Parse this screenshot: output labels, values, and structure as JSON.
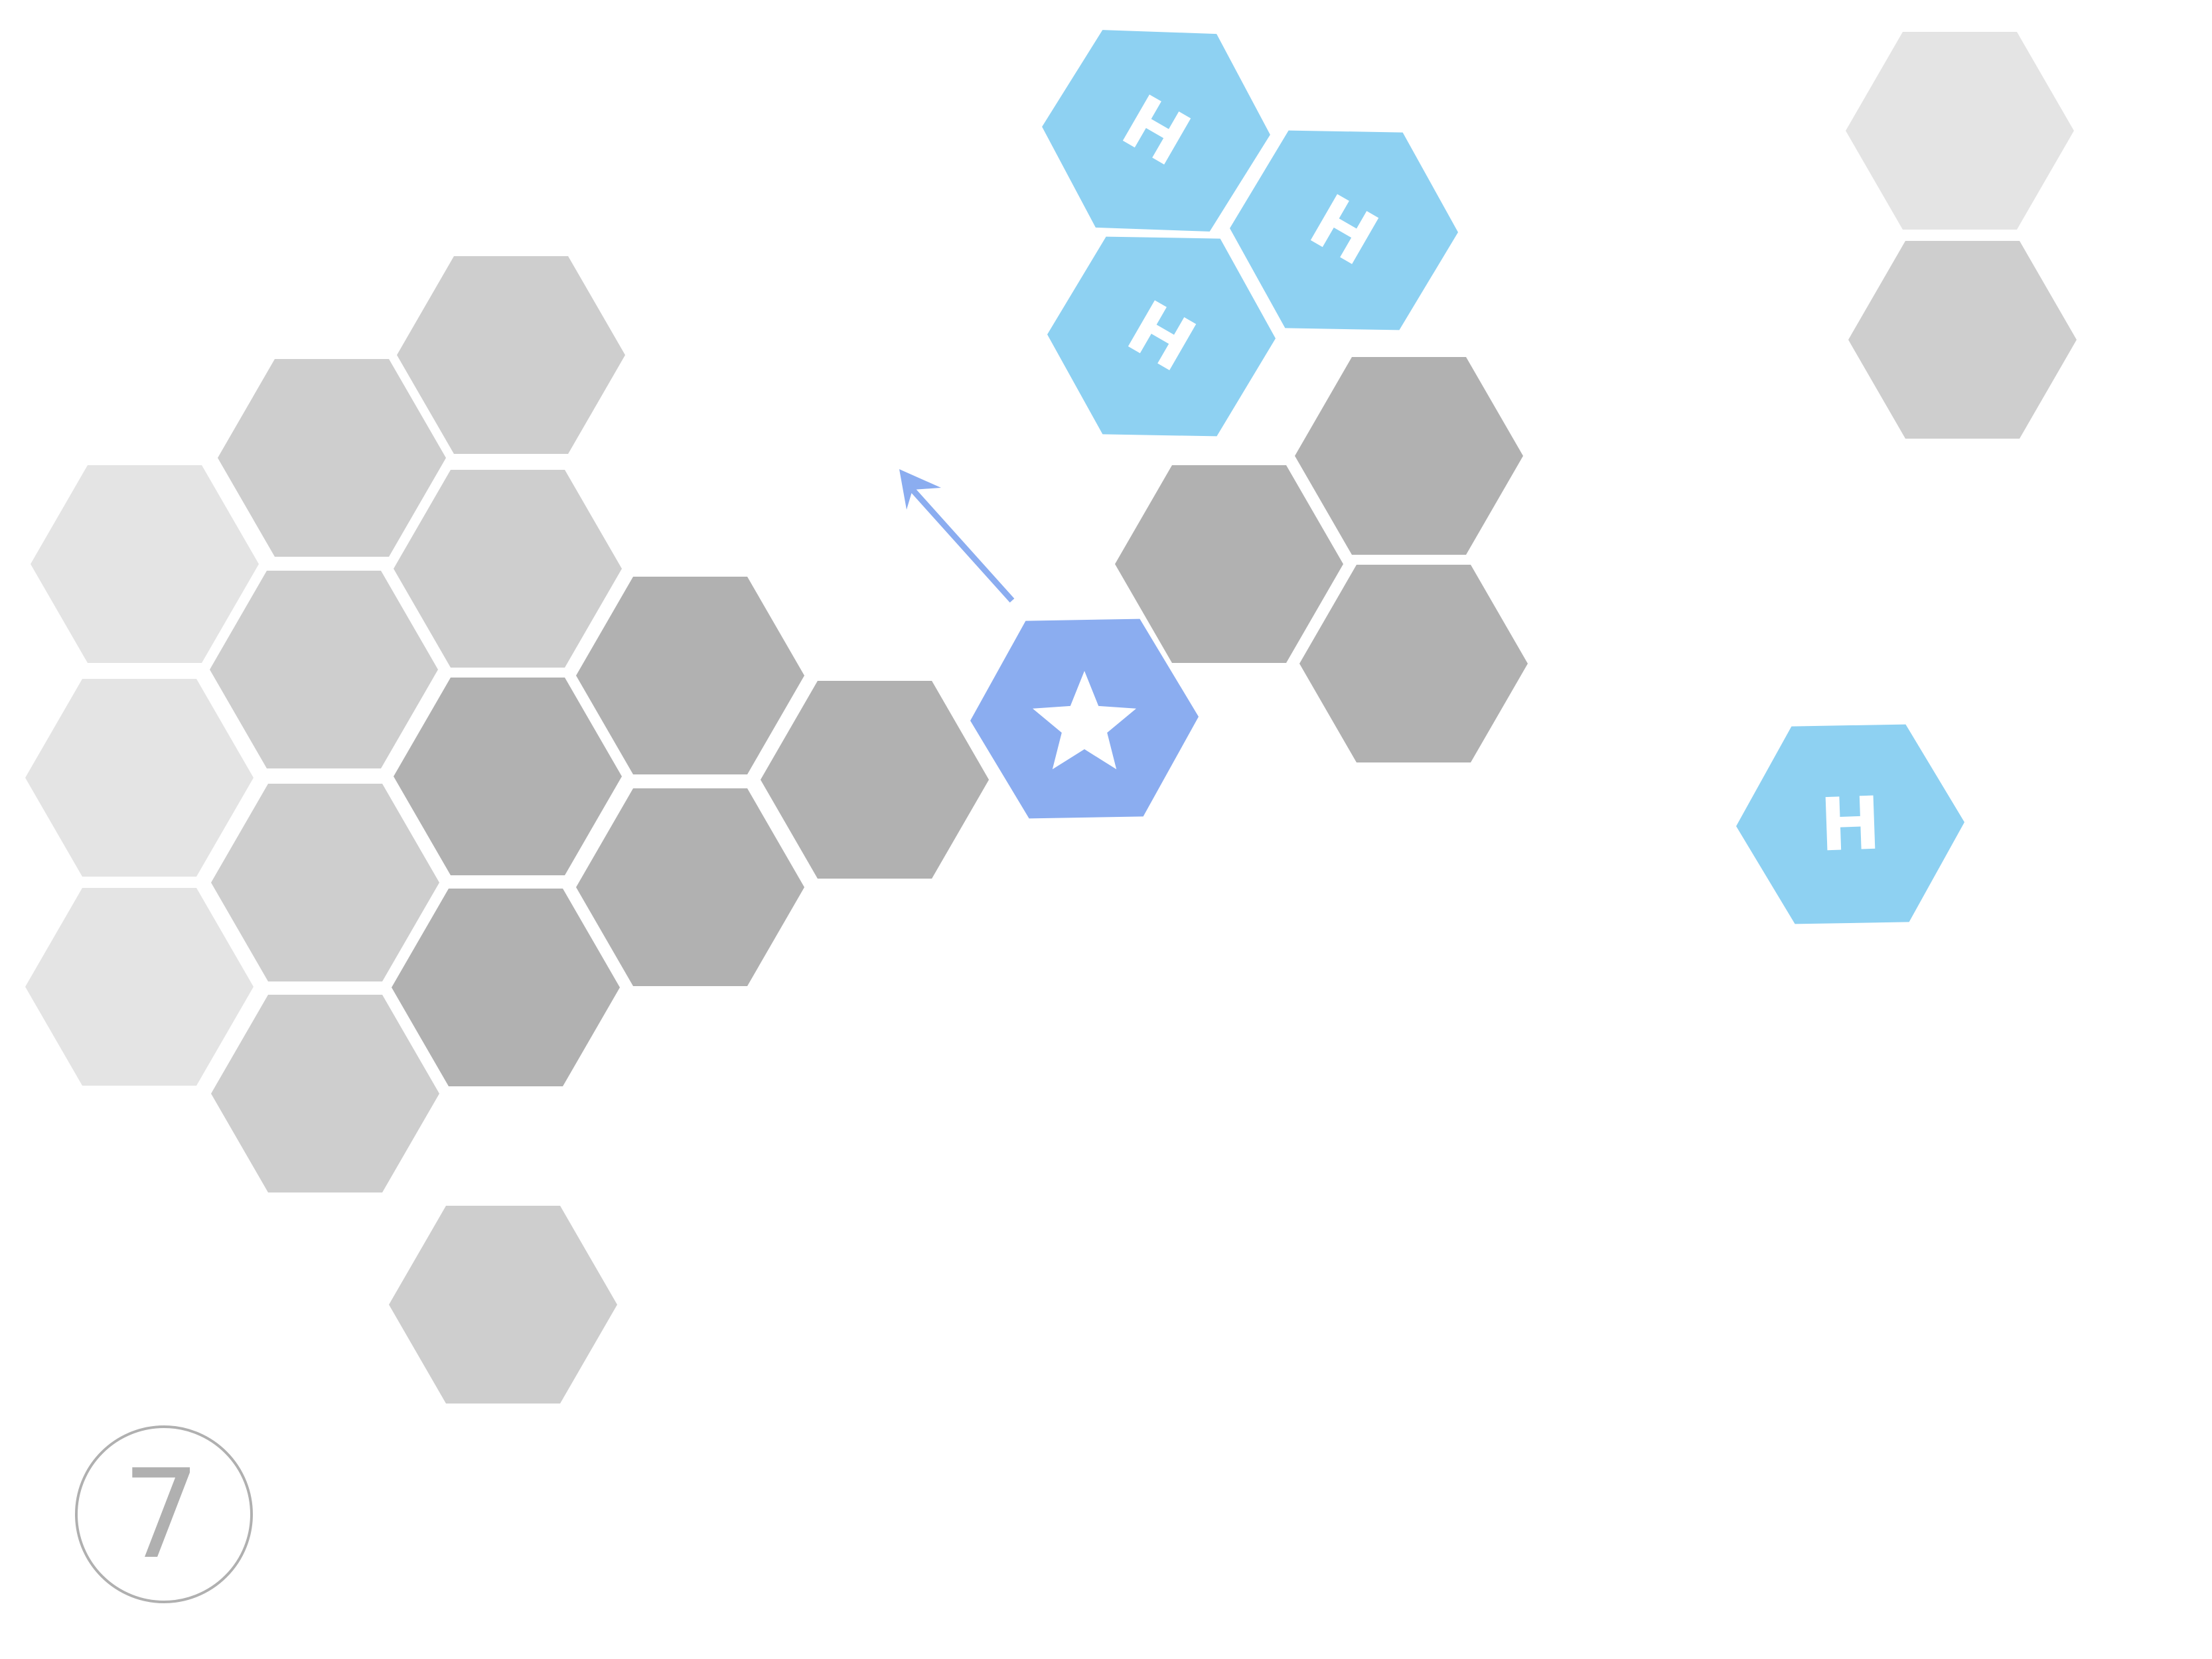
{
  "colors": {
    "background": "#ffffff",
    "gray_light": "#e4e4e4",
    "gray_mid": "#cecece",
    "gray_dark": "#b1b1b1",
    "piece_blue": "#8ed1f2",
    "player_blue": "#8badf0",
    "counter_stroke": "#b0b0b0",
    "counter_text": "#b0b0b0"
  },
  "counter": {
    "label": "7"
  },
  "tiles": [
    {
      "shade": "gray_light"
    },
    {
      "shade": "gray_light"
    },
    {
      "shade": "gray_light"
    },
    {
      "shade": "gray_mid"
    },
    {
      "shade": "gray_mid"
    },
    {
      "shade": "gray_mid"
    },
    {
      "shade": "gray_mid"
    },
    {
      "shade": "gray_mid"
    },
    {
      "shade": "gray_mid"
    },
    {
      "shade": "gray_mid"
    },
    {
      "shade": "gray_mid"
    },
    {
      "shade": "gray_dark"
    },
    {
      "shade": "gray_dark"
    },
    {
      "shade": "gray_dark"
    },
    {
      "shade": "gray_dark"
    },
    {
      "shade": "gray_dark"
    },
    {
      "shade": "gray_dark"
    },
    {
      "shade": "gray_dark"
    },
    {
      "shade": "gray_dark"
    },
    {
      "shade": "gray_light"
    },
    {
      "shade": "gray_mid"
    }
  ],
  "pieces": [
    {
      "label": "H",
      "icon": "h-icon",
      "color": "piece_blue"
    },
    {
      "label": "H",
      "icon": "h-icon",
      "color": "piece_blue"
    },
    {
      "label": "H",
      "icon": "h-icon",
      "color": "piece_blue"
    },
    {
      "label": "H",
      "icon": "h-icon",
      "color": "piece_blue"
    }
  ],
  "player": {
    "icon": "star-icon",
    "color": "player_blue"
  },
  "direction_arrow": {
    "icon": "arrow-icon",
    "color": "player_blue"
  }
}
